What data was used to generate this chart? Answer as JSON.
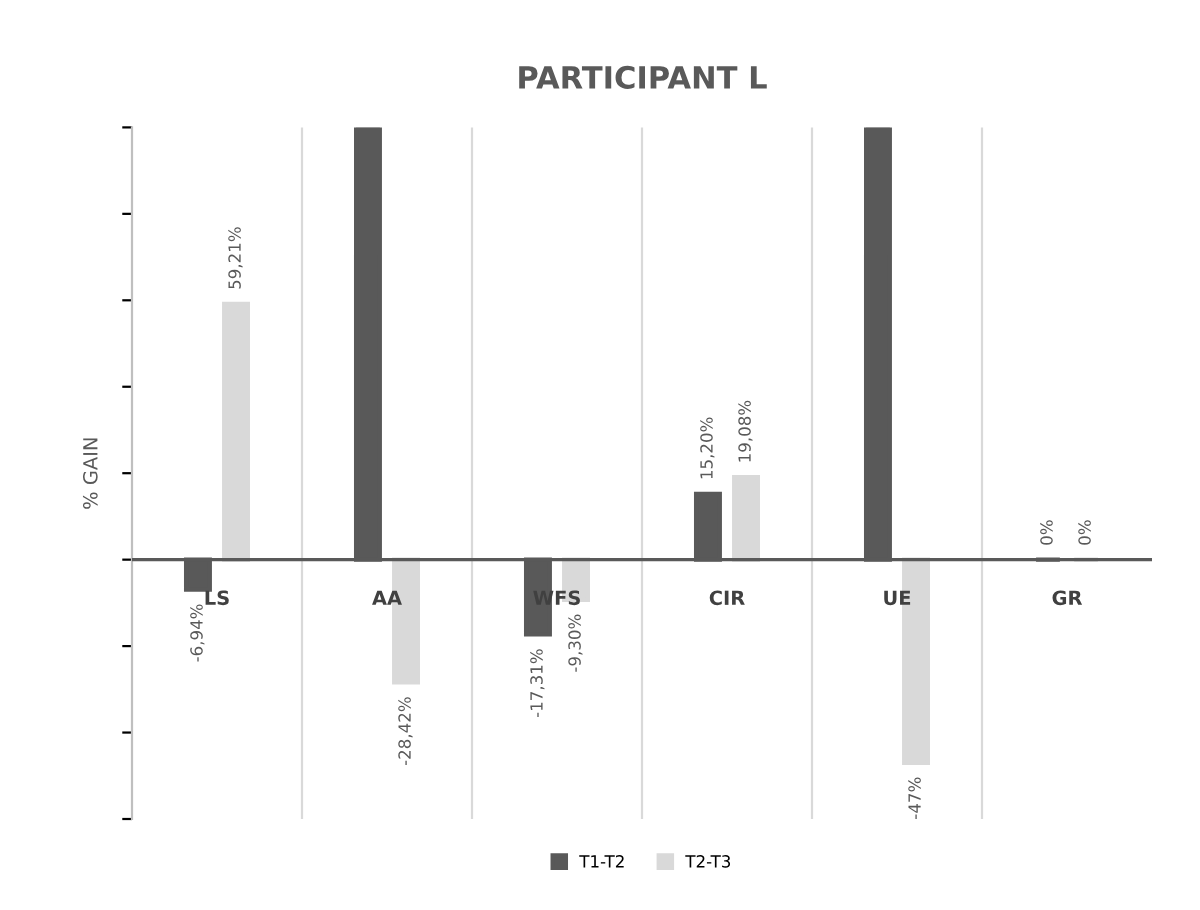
{
  "chart_data": {
    "type": "bar",
    "title": "PARTICIPANT L",
    "ylabel": "% GAIN",
    "categories": [
      "LS",
      "AA",
      "WFS",
      "CIR",
      "UE",
      "GR"
    ],
    "series": [
      {
        "name": "T1-T2",
        "color": "#595959",
        "values": [
          -6.94,
          100,
          -17.31,
          15.2,
          100,
          0
        ],
        "value_labels": [
          "-6,94%",
          null,
          "-17,31%",
          "15,20%",
          null,
          "0%"
        ]
      },
      {
        "name": "T2-T3",
        "color": "#d9d9d9",
        "values": [
          59.21,
          -28.42,
          -9.3,
          19.08,
          -47,
          0
        ],
        "value_labels": [
          "59,21%",
          "-28,42%",
          "-9,30%",
          "19,08%",
          "-47%",
          "0%"
        ]
      }
    ],
    "ylim": [
      -60,
      100
    ],
    "tick_labels": "x",
    "grid": "x",
    "legend": "bottom"
  }
}
